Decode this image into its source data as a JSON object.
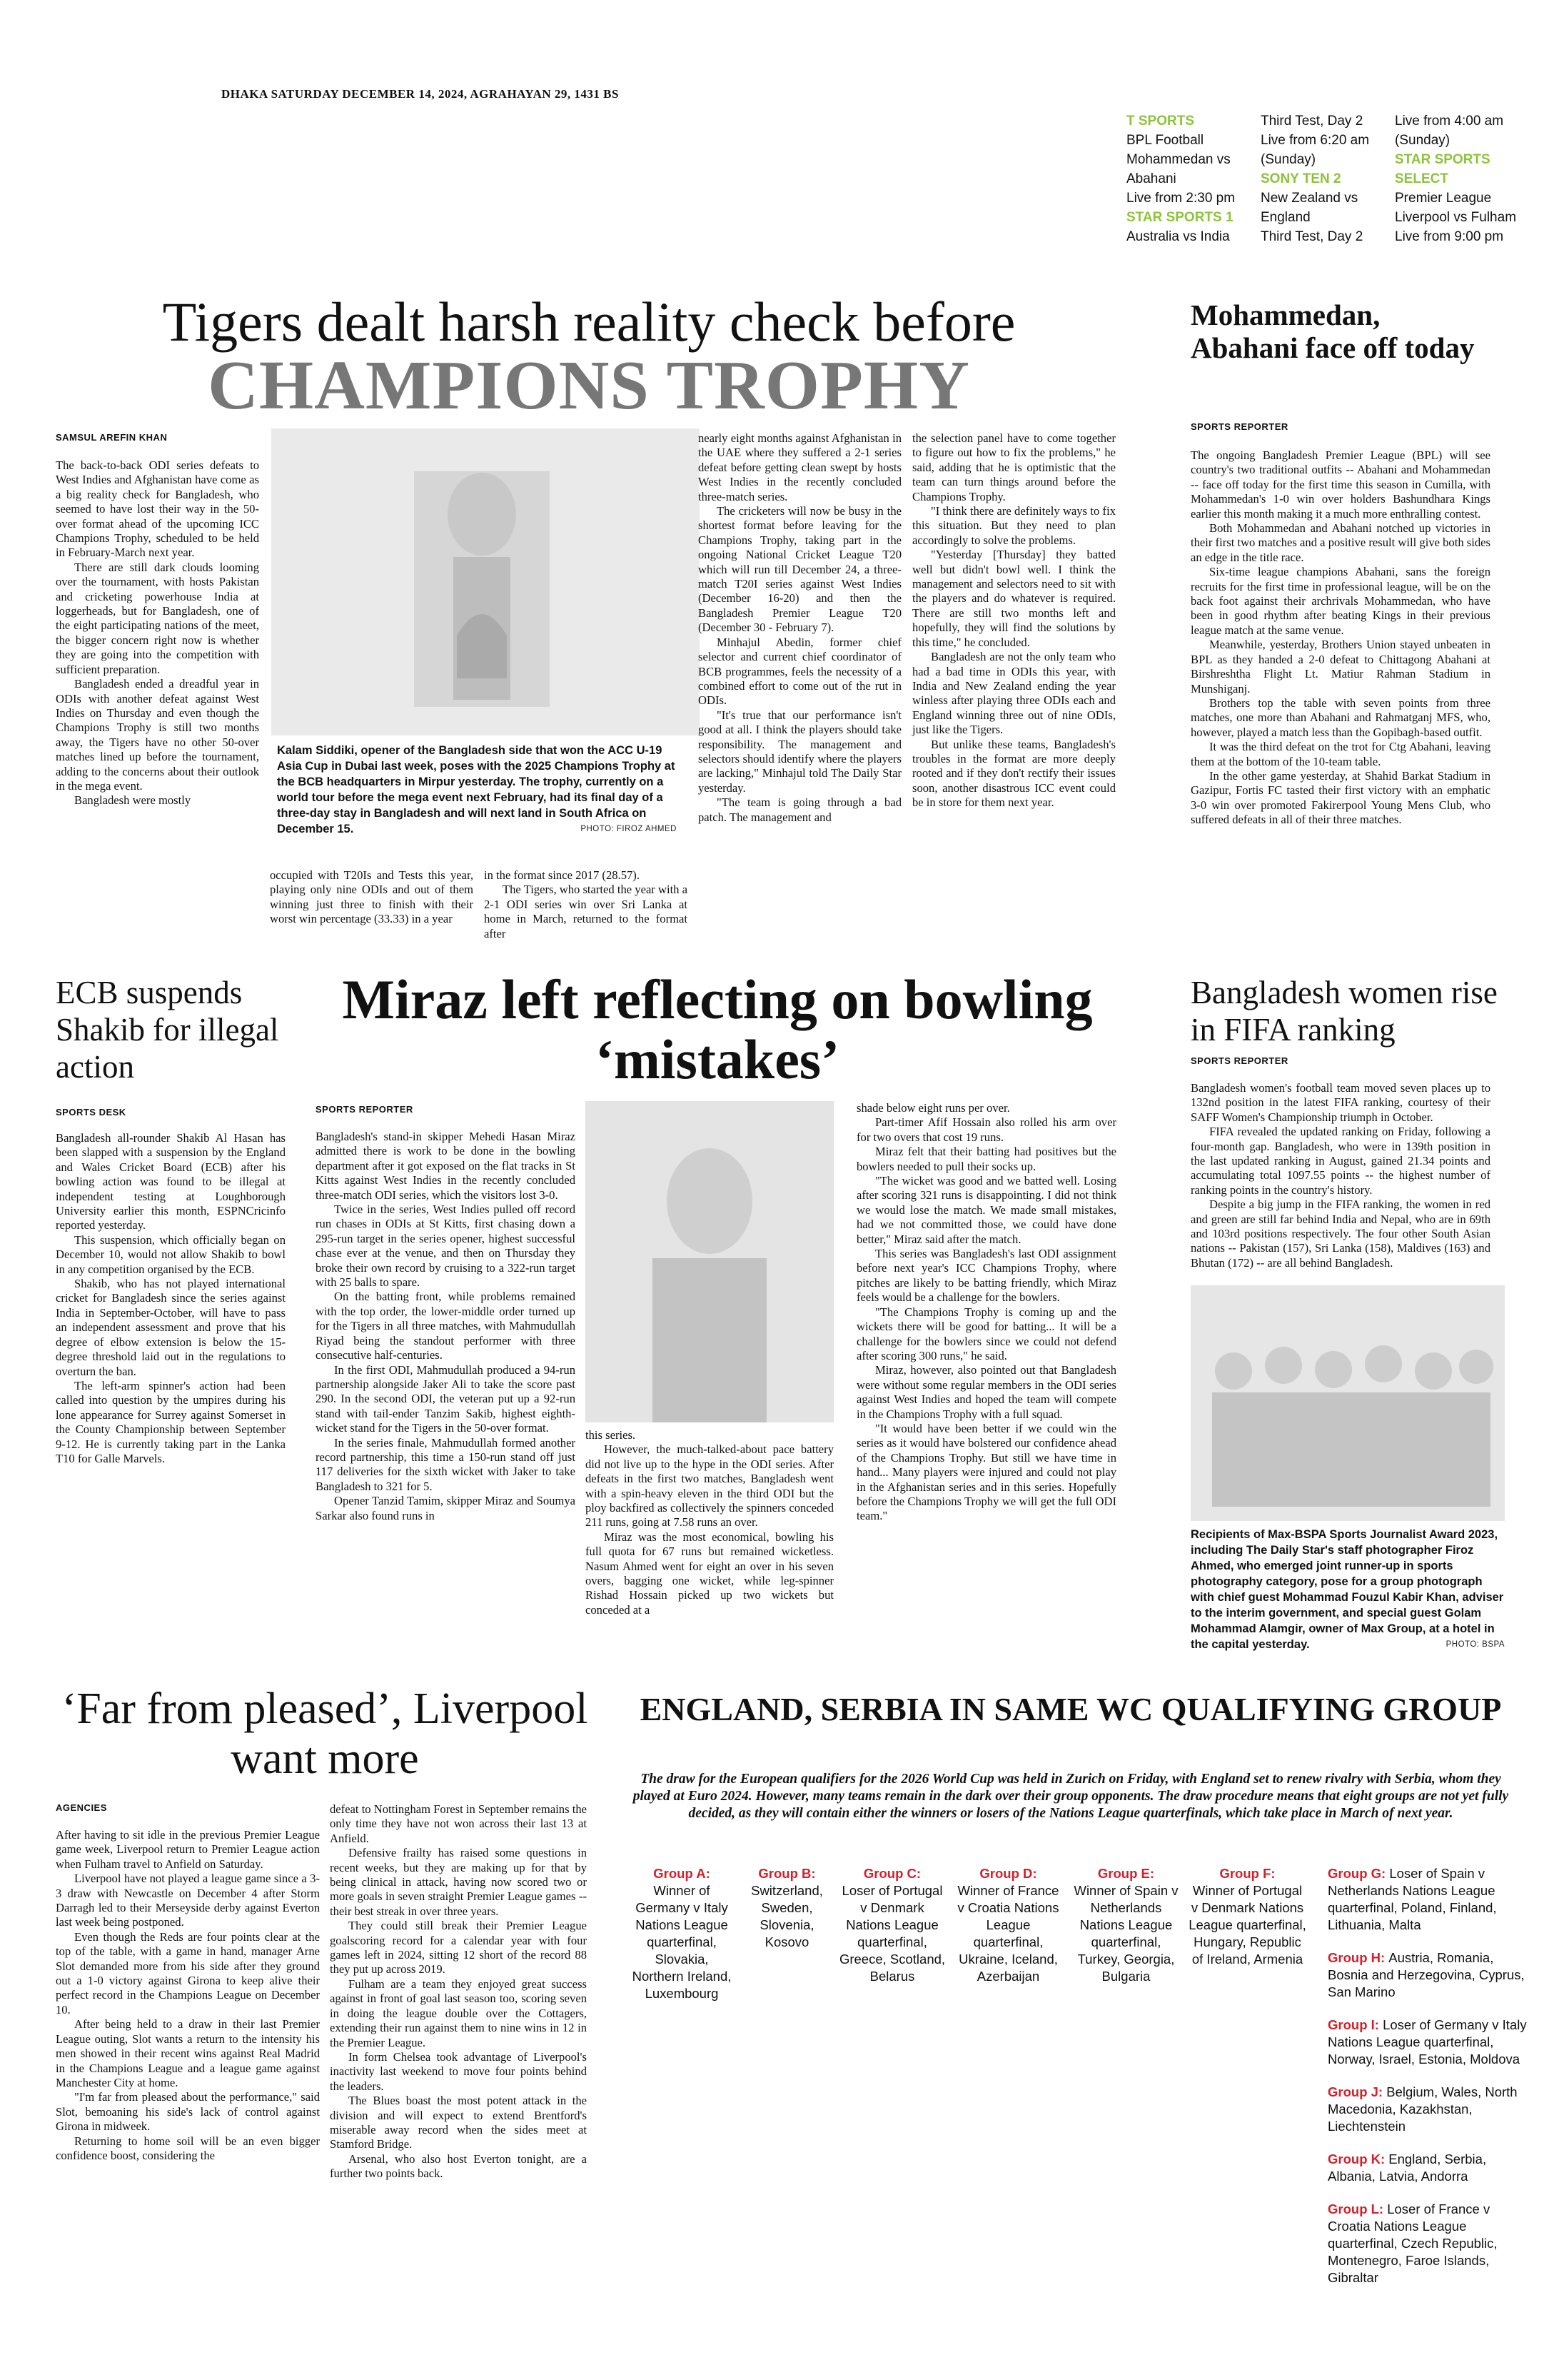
{
  "dateline": "DHAKA SATURDAY DECEMBER 14, 2024, AGRAHAYAN 29, 1431 BS",
  "tv": [
    [
      {
        "ch": "T SPORTS"
      },
      {
        "t": "BPL Football"
      },
      {
        "t": "Mohammedan vs"
      },
      {
        "t": "Abahani"
      },
      {
        "t": "Live from 2:30 pm"
      },
      {
        "ch": "STAR SPORTS 1"
      },
      {
        "t": "Australia vs India"
      }
    ],
    [
      {
        "t": "Third Test, Day 2"
      },
      {
        "t": "Live from 6:20 am"
      },
      {
        "t": "(Sunday)"
      },
      {
        "ch": "SONY TEN 2"
      },
      {
        "t": "New Zealand vs"
      },
      {
        "t": "England"
      },
      {
        "t": "Third Test, Day 2"
      }
    ],
    [
      {
        "t": "Live from 4:00 am"
      },
      {
        "t": "(Sunday)"
      },
      {
        "ch": "STAR SPORTS"
      },
      {
        "ch": "SELECT"
      },
      {
        "t": "Premier League"
      },
      {
        "t": "Liverpool vs Fulham"
      },
      {
        "t": "Live from 9:00 pm"
      }
    ]
  ],
  "lead": {
    "title": "Tigers dealt harsh reality check before",
    "subtitle": "CHAMPIONS TROPHY",
    "byline": "SAMSUL AREFIN KHAN",
    "caption": "Kalam Siddiki, opener of the Bangladesh side that won the ACC U-19 Asia Cup in Dubai last week, poses with the 2025 Champions Trophy at the BCB headquarters in Mirpur yesterday. The trophy, currently on a world tour before the mega event next February, had its final day of a three-day stay in Bangladesh and will next land in South Africa on December 15.",
    "credit": "PHOTO: FIROZ AHMED",
    "col1": [
      "The back-to-back ODI series defeats to West Indies and Afghanistan have come as a big reality check for Bangladesh, who seemed to have lost their way in the 50-over format ahead of the upcoming ICC Champions Trophy, scheduled to be held in February-March next year.",
      "There are still dark clouds looming over the tournament, with hosts Pakistan and cricketing powerhouse India at loggerheads, but for Bangladesh, one of the eight participating nations of the meet, the bigger concern right now is whether they are going into the competition with sufficient preparation.",
      "Bangladesh ended a dreadful year in ODIs with another defeat against West Indies on Thursday and even though the Champions Trophy is still two months away, the Tigers have no other 50-over matches lined up before the tournament, adding to the concerns about their outlook in the mega event.",
      "Bangladesh were mostly"
    ],
    "col2": [
      "occupied with T20Is and Tests this year, playing only nine ODIs and out of them winning just three to finish with their worst win percentage (33.33) in a year"
    ],
    "col3": [
      "in the format since 2017 (28.57).",
      "The Tigers, who started the year with a 2-1 ODI series win over Sri Lanka at home in March, returned to the format after"
    ],
    "col4": [
      "nearly eight months against Afghanistan in the UAE where they suffered a 2-1 series defeat before getting clean swept by hosts West Indies in the recently concluded three-match series.",
      "The cricketers will now be busy in the shortest format before leaving for the Champions Trophy, taking part in the ongoing National Cricket League T20 which will run till December 24, a three-match T20I series against West Indies (December 16-20) and then the Bangladesh Premier League T20 (December 30 - February 7).",
      "Minhajul Abedin, former chief selector and current chief coordinator of BCB programmes, feels the necessity of a combined effort to come out of the rut in ODIs.",
      "\"It's true that our performance isn't good at all. I think the players should take responsibility. The management and selectors should identify where the players are lacking,\" Minhajul told The Daily Star yesterday.",
      "\"The team is going through a bad patch. The management and"
    ],
    "col5": [
      "the selection panel have to come together to figure out how to fix the problems,\" he said, adding that he is optimistic that the team can turn things around before the Champions Trophy.",
      "\"I think there are definitely ways to fix this situation. But they need to plan accordingly to solve the problems.",
      "\"Yesterday [Thursday] they batted well but didn't bowl well. I think the management and selectors need to sit with the players and do whatever is required. There are still two months left and hopefully, they will find the solutions by this time,\" he concluded.",
      "Bangladesh are not the only team who had a bad time in ODIs this year, with India and New Zealand ending the year winless after playing three ODIs each and England winning three out of nine ODIs, just like the Tigers.",
      "But unlike these teams, Bangladesh's troubles in the format are more deeply rooted and if they don't rectify their issues soon, another disastrous ICC event could be in store for them next year."
    ]
  },
  "moha": {
    "title": "Mohammedan, Abahani face off today",
    "byline": "SPORTS REPORTER",
    "paras": [
      "The ongoing Bangladesh Premier League (BPL) will see country's two traditional outfits -- Abahani and Mohammedan -- face off today for the first time this season in Cumilla, with Mohammedan's 1-0 win over holders Bashundhara Kings earlier this month making it a much more enthralling contest.",
      "Both Mohammedan and Abahani notched up victories in their first two matches and a positive result will give both sides an edge in the title race.",
      "Six-time league champions Abahani, sans the foreign recruits for the first time in professional league, will be on the back foot against their archrivals Mohammedan, who have been in good rhythm after beating Kings in their previous league match at the same venue.",
      "Meanwhile, yesterday, Brothers Union stayed unbeaten in BPL as they handed a 2-0 defeat to Chittagong Abahani at Birshreshtha Flight Lt. Matiur Rahman Stadium in Munshiganj.",
      "Brothers top the table with seven points from three matches, one more than Abahani and Rahmatganj MFS, who, however, played a match less than the Gopibagh-based outfit.",
      "It was the third defeat on the trot for Ctg Abahani, leaving them at the bottom of the 10-team table.",
      "In the other game yesterday, at Shahid Barkat Stadium in Gazipur, Fortis FC tasted their first victory with an emphatic 3-0 win over promoted Fakirerpool Young Mens Club, who suffered defeats in all of their three matches."
    ]
  },
  "ecb": {
    "title": "ECB suspends Shakib for illegal action",
    "byline": "SPORTS DESK",
    "paras": [
      "Bangladesh all-rounder Shakib Al Hasan has been slapped with a suspension by the England and Wales Cricket Board (ECB) after his bowling action was found to be illegal at independent testing at Loughborough University earlier this month, ESPNCricinfo reported yesterday.",
      "This suspension, which officially began on December 10, would not allow Shakib to bowl in any competition organised by the ECB.",
      "Shakib, who has not played international cricket for Bangladesh since the series against India in September-October, will have to pass an independent assessment and prove that his degree of elbow extension is below the 15-degree threshold laid out in the regulations to overturn the ban.",
      "The left-arm spinner's action had been called into question by the umpires during his lone appearance for Surrey against Somerset in the County Championship between September 9-12. He is currently taking part in the Lanka T10 for Galle Marvels."
    ]
  },
  "miraz": {
    "title": "Miraz left reflecting on bowling ‘mistakes’",
    "byline": "SPORTS REPORTER",
    "col1": [
      "Bangladesh's stand-in skipper Mehedi Hasan Miraz admitted there is work to be done in the bowling department after it got exposed on the flat tracks in St Kitts against West Indies in the recently concluded three-match ODI series, which the visitors lost 3-0.",
      "Twice in the series, West Indies pulled off record run chases in ODIs at St Kitts, first chasing down a 295-run target in the series opener, highest successful chase ever at the venue, and then on Thursday they broke their own record by cruising to a 322-run target with 25 balls to spare.",
      "On the batting front, while problems remained with the top order, the lower-middle order turned up for the Tigers in all three matches, with Mahmudullah Riyad being the standout performer with three consecutive half-centuries.",
      "In the first ODI, Mahmudullah produced a 94-run partnership alongside Jaker Ali to take the score past 290. In the second ODI, the veteran put up a 92-run stand with tail-ender Tanzim Sakib, highest eighth-wicket stand for the Tigers in the 50-over format.",
      "In the series finale, Mahmudullah formed another record partnership, this time a 150-run stand off just 117 deliveries for the sixth wicket with Jaker to take Bangladesh to 321 for 5.",
      "Opener Tanzid Tamim, skipper Miraz and Soumya Sarkar also found runs in"
    ],
    "col2": [
      "this series.",
      "However, the much-talked-about pace battery did not live up to the hype in the ODI series. After defeats in the first two matches, Bangladesh went with a spin-heavy eleven in the third ODI but the ploy backfired as collectively the spinners conceded 211 runs, going at 7.58 runs an over.",
      "Miraz was the most economical, bowling his full quota for 67 runs but remained wicketless. Nasum Ahmed went for eight an over in his seven overs, bagging one wicket, while leg-spinner Rishad Hossain picked up two wickets but conceded at a"
    ],
    "col3": [
      "shade below eight runs per over.",
      "Part-timer Afif Hossain also rolled his arm over for two overs that cost 19 runs.",
      "Miraz felt that their batting had positives but the bowlers needed to pull their socks up.",
      "\"The wicket was good and we batted well. Losing after scoring 321 runs is disappointing. I did not think we would lose the match. We made small mistakes, had we not committed those, we could have done better,\" Miraz said after the match.",
      "This series was Bangladesh's last ODI assignment before next year's ICC Champions Trophy, where pitches are likely to be batting friendly, which Miraz feels would be a challenge for the bowlers.",
      "\"The Champions Trophy is coming up and the wickets there will be good for batting... It will be a challenge for the bowlers since we could not defend after scoring 300 runs,\" he said.",
      "Miraz, however, also pointed out that Bangladesh were without some regular members in the ODI series against West Indies and hoped the team will compete in the Champions Trophy with a full squad.",
      "\"It would have been better if we could win the series as it would have bolstered our confidence ahead of the Champions Trophy. But still we have time in hand... Many players were injured and could not play in the Afghanistan series and in this series. Hopefully before the Champions Trophy we will get the full ODI team.\""
    ]
  },
  "fifa": {
    "title": "Bangladesh women rise in FIFA ranking",
    "byline": "SPORTS REPORTER",
    "paras": [
      "Bangladesh women's football team moved seven places up to 132nd position in the latest FIFA ranking, courtesy of their SAFF Women's Championship triumph in October.",
      "FIFA revealed the updated ranking on Friday, following a four-month gap. Bangladesh, who were in 139th position in the last updated ranking in August, gained 21.34 points and accumulating total 1097.55 points -- the highest number of ranking points in the country's history.",
      "Despite a big jump in the FIFA ranking, the women in red and green are still far behind India and Nepal, who are in 69th and 103rd positions respectively. The four other South Asian nations -- Pakistan (157), Sri Lanka (158), Maldives (163) and Bhutan (172) -- are all behind Bangladesh."
    ],
    "caption": "Recipients of Max-BSPA Sports Journalist Award 2023, including The Daily Star's staff photographer Firoz Ahmed, who emerged joint runner-up in sports photography category, pose for a group photograph with chief guest Mohammad Fouzul Kabir Khan, adviser to the interim government, and special guest Golam Mohammad Alamgir, owner of Max Group, at a hotel in the capital yesterday.",
    "credit": "PHOTO: BSPA"
  },
  "liv": {
    "title": "‘Far from pleased’, Liverpool want more",
    "byline": "AGENCIES",
    "col1": [
      "After having to sit idle in the previous Premier League game week, Liverpool return to Premier League action when Fulham travel to Anfield on Saturday.",
      "Liverpool have not played a league game since a 3-3 draw with Newcastle on December 4 after Storm Darragh led to their Merseyside derby against Everton last week being postponed.",
      "Even though the Reds are four points clear at the top of the table, with a game in hand, manager Arne Slot demanded more from his side after they ground out a 1-0 victory against Girona to keep alive their perfect record in the Champions League on December 10.",
      "After being held to a draw in their last Premier League outing, Slot wants a return to the intensity his men showed in their recent wins against Real Madrid in the Champions League and a league game against Manchester City at home.",
      "\"I'm far from pleased about the performance,\" said Slot, bemoaning his side's lack of control against Girona in midweek.",
      "Returning to home soil will be an even bigger confidence boost, considering the"
    ],
    "col2": [
      "defeat to Nottingham Forest in September remains the only time they have not won across their last 13 at Anfield.",
      "Defensive frailty has raised some questions in recent weeks, but they are making up for that by being clinical in attack, having now scored two or more goals in seven straight Premier League games -- their best streak in over three years.",
      "They could still break their Premier League goalscoring record for a calendar year with four games left in 2024, sitting 12 short of the record 88 they put up across 2019.",
      "Fulham are a team they enjoyed great success against in front of goal last season too, scoring seven in doing the league double over the Cottagers, extending their run against them to nine wins in 12 in the Premier League.",
      "In form Chelsea took advantage of Liverpool's inactivity last weekend to move four points behind the leaders.",
      "The Blues boast the most potent attack in the division and will expect to extend Brentford's miserable away record when the sides meet at Stamford Bridge.",
      "Arsenal, who also host Everton tonight, are a further two points back."
    ]
  },
  "eng": {
    "title": "ENGLAND, SERBIA IN SAME WC QUALIFYING GROUP",
    "intro": "The draw for the European qualifiers for the 2026 World Cup was held in Zurich on Friday, with England set to renew rivalry with Serbia, whom they played at Euro 2024. However, many teams remain in the dark over their group opponents. The draw procedure means that eight groups are not yet fully decided, as they will contain either the winners or losers of the Nations League quarterfinals, which take place in March of next year.",
    "groups_row": [
      {
        "label": "Group A:",
        "text": "Winner of Germany v Italy Nations League quarterfinal, Slovakia, Northern Ireland, Luxembourg"
      },
      {
        "label": "Group B:",
        "text": "Switzerland, Sweden, Slovenia, Kosovo"
      },
      {
        "label": "Group C:",
        "text": "Loser of Portugal v Denmark Nations League quarterfinal, Greece, Scotland, Belarus"
      },
      {
        "label": "Group D:",
        "text": "Winner of France v Croatia Nations League quarterfinal, Ukraine, Iceland, Azerbaijan"
      },
      {
        "label": "Group E:",
        "text": "Winner of Spain v Netherlands Nations League quarterfinal, Turkey, Georgia, Bulgaria"
      },
      {
        "label": "Group F:",
        "text": "Winner of Portugal v Denmark Nations League quarterfinal, Hungary, Republic of Ireland, Armenia"
      }
    ],
    "groups_list": [
      {
        "label": "Group G:",
        "text": "Loser of Spain v Netherlands Nations League quarterfinal, Poland, Finland, Lithuania, Malta"
      },
      {
        "label": "Group H:",
        "text": "Austria, Romania, Bosnia and Herzegovina, Cyprus, San Marino"
      },
      {
        "label": "Group I:",
        "text": "Loser of Germany v Italy Nations League quarterfinal, Norway, Israel, Estonia, Moldova"
      },
      {
        "label": "Group J:",
        "text": "Belgium, Wales, North Macedonia, Kazakhstan, Liechtenstein"
      },
      {
        "label": "Group K:",
        "text": "England, Serbia, Albania, Latvia, Andorra"
      },
      {
        "label": "Group L:",
        "text": "Loser of France v Croatia Nations League quarterfinal, Czech Republic, Montenegro, Faroe Islands, Gibraltar"
      }
    ]
  }
}
